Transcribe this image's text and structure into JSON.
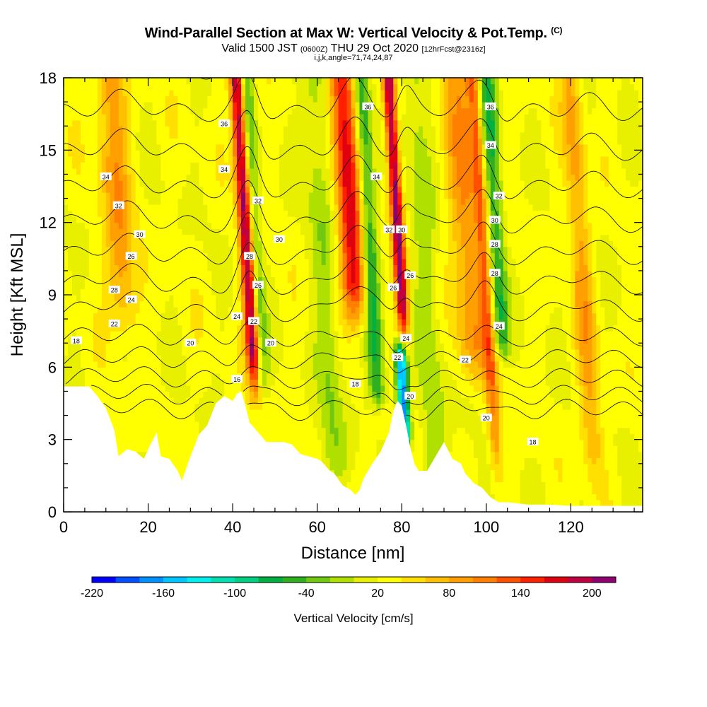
{
  "header": {
    "title": "Wind-Parallel Section at Max W: Vertical Velocity & Pot.Temp.",
    "title_tag": "(C)",
    "valid_prefix": "Valid 1500 JST",
    "valid_zulu": "(0600Z)",
    "valid_date": "THU 29 Oct 2020",
    "forecast_tag": "[12hrFcst@2316z]",
    "indices": "i,j,k,angle=71,74,24,87"
  },
  "chart_data": {
    "type": "heatmap",
    "xlabel": "Distance [nm]",
    "ylabel": "Height [Kft MSL]",
    "xlim": [
      0,
      137
    ],
    "ylim": [
      0,
      18
    ],
    "x_ticks": [
      "0",
      "20",
      "40",
      "60",
      "80",
      "100",
      "120"
    ],
    "y_ticks": [
      "0",
      "3",
      "6",
      "9",
      "12",
      "15",
      "18"
    ],
    "x_tick_values": [
      0,
      20,
      40,
      60,
      80,
      100,
      120
    ],
    "y_tick_values": [
      0,
      3,
      6,
      9,
      12,
      15,
      18
    ],
    "colorbar": {
      "title": "Vertical Velocity [cm/s]",
      "min": -220,
      "max": 220,
      "step": 20,
      "tick_labels": [
        "-220",
        "-160",
        "-100",
        "-40",
        "20",
        "80",
        "140",
        "200"
      ],
      "tick_values": [
        -220,
        -160,
        -100,
        -40,
        20,
        80,
        140,
        200
      ],
      "colors": [
        "#0000ff",
        "#0050ff",
        "#0090ff",
        "#00c8ff",
        "#00f0f0",
        "#00e0b0",
        "#00d080",
        "#00b040",
        "#30b020",
        "#70c810",
        "#b0e000",
        "#e8f000",
        "#ffff00",
        "#ffe000",
        "#ffc000",
        "#ffa000",
        "#ff8000",
        "#ff5000",
        "#ff2000",
        "#e00010",
        "#c00040",
        "#900070"
      ]
    },
    "terrain_kft": [
      [
        0,
        5.2
      ],
      [
        6,
        5.2
      ],
      [
        8,
        4.8
      ],
      [
        10,
        4.3
      ],
      [
        12,
        3.4
      ],
      [
        13,
        2.3
      ],
      [
        15,
        2.6
      ],
      [
        17,
        2.5
      ],
      [
        19,
        2.2
      ],
      [
        20,
        2.6
      ],
      [
        22,
        3.3
      ],
      [
        23,
        2.3
      ],
      [
        25,
        2.2
      ],
      [
        27,
        1.7
      ],
      [
        28,
        1.3
      ],
      [
        30,
        2.3
      ],
      [
        32,
        3.2
      ],
      [
        34,
        3.6
      ],
      [
        36,
        4.5
      ],
      [
        38,
        4.8
      ],
      [
        40,
        4.6
      ],
      [
        41,
        4.9
      ],
      [
        42,
        5.0
      ],
      [
        43,
        4.4
      ],
      [
        44,
        3.7
      ],
      [
        46,
        3.3
      ],
      [
        48,
        2.9
      ],
      [
        52,
        2.9
      ],
      [
        54,
        2.8
      ],
      [
        56,
        2.4
      ],
      [
        58,
        2.3
      ],
      [
        60,
        2.2
      ],
      [
        61,
        2.1
      ],
      [
        62,
        1.9
      ],
      [
        63,
        1.7
      ],
      [
        64,
        1.6
      ],
      [
        66,
        1.1
      ],
      [
        68,
        0.9
      ],
      [
        69,
        0.7
      ],
      [
        70,
        0.9
      ],
      [
        71,
        1.4
      ],
      [
        73,
        2.0
      ],
      [
        75,
        2.5
      ],
      [
        77,
        3.3
      ],
      [
        78,
        4.2
      ],
      [
        79,
        4.6
      ],
      [
        80,
        4.4
      ],
      [
        81,
        3.6
      ],
      [
        82,
        2.7
      ],
      [
        83,
        2.0
      ],
      [
        84,
        1.7
      ],
      [
        86,
        1.7
      ],
      [
        88,
        2.3
      ],
      [
        90,
        2.9
      ],
      [
        92,
        2.2
      ],
      [
        94,
        2.0
      ],
      [
        95,
        1.6
      ],
      [
        97,
        1.2
      ],
      [
        99,
        1.0
      ],
      [
        101,
        0.6
      ],
      [
        103,
        0.4
      ],
      [
        105,
        0.4
      ],
      [
        110,
        0.3
      ],
      [
        115,
        0.3
      ],
      [
        120,
        0.25
      ],
      [
        130,
        0.25
      ],
      [
        137,
        0.25
      ]
    ],
    "updrafts": [
      {
        "x": 44,
        "width": 1.6,
        "w": 180,
        "base": 5.5
      },
      {
        "x": 69,
        "width": 3.0,
        "w": 150,
        "base": 8.5
      },
      {
        "x": 80,
        "width": 1.4,
        "w": 190,
        "base": 7.5
      },
      {
        "x": 14,
        "width": 3.5,
        "w": 70,
        "base": 8.0
      },
      {
        "x": 96,
        "width": 4.0,
        "w": 70,
        "base": 6.0
      },
      {
        "x": 123,
        "width": 2.5,
        "w": 60,
        "base": 2.0
      },
      {
        "x": 100,
        "width": 1.5,
        "w": 80,
        "base": 2.0
      }
    ],
    "downdrafts": [
      {
        "x": 79,
        "width": 1.4,
        "w": -200,
        "bottom": 3.2,
        "top": 6.5
      },
      {
        "x": 73,
        "width": 2.0,
        "w": -90,
        "bottom": 5.0,
        "top": 18
      },
      {
        "x": 46,
        "width": 1.5,
        "w": -60,
        "bottom": 5.5,
        "top": 18
      },
      {
        "x": 103,
        "width": 2.0,
        "w": -80,
        "bottom": 7.0,
        "top": 18
      },
      {
        "x": 62,
        "width": 3.0,
        "w": -40,
        "bottom": 2.0,
        "top": 18
      },
      {
        "x": 86,
        "width": 3.0,
        "w": -40,
        "bottom": 1.5,
        "top": 18
      }
    ],
    "theta_contours": {
      "min": 16,
      "max": 36,
      "step": 1
    },
    "contour_labels": [
      {
        "text": "36",
        "x": 38,
        "y": 16.1
      },
      {
        "text": "34",
        "x": 10,
        "y": 13.9
      },
      {
        "text": "34",
        "x": 38,
        "y": 14.2
      },
      {
        "text": "32",
        "x": 13,
        "y": 12.7
      },
      {
        "text": "32",
        "x": 46,
        "y": 12.9
      },
      {
        "text": "30",
        "x": 18,
        "y": 11.5
      },
      {
        "text": "30",
        "x": 51,
        "y": 11.3
      },
      {
        "text": "26",
        "x": 16,
        "y": 10.6
      },
      {
        "text": "28",
        "x": 44,
        "y": 10.6
      },
      {
        "text": "26",
        "x": 46,
        "y": 9.4
      },
      {
        "text": "28",
        "x": 12,
        "y": 9.2
      },
      {
        "text": "24",
        "x": 16,
        "y": 8.8
      },
      {
        "text": "24",
        "x": 41,
        "y": 8.1
      },
      {
        "text": "22",
        "x": 45,
        "y": 7.9
      },
      {
        "text": "22",
        "x": 12,
        "y": 7.8
      },
      {
        "text": "20",
        "x": 30,
        "y": 7.0
      },
      {
        "text": "20",
        "x": 49,
        "y": 7.0
      },
      {
        "text": "18",
        "x": 3,
        "y": 7.1
      },
      {
        "text": "16",
        "x": 41,
        "y": 5.5
      },
      {
        "text": "36",
        "x": 72,
        "y": 16.8
      },
      {
        "text": "34",
        "x": 74,
        "y": 13.9
      },
      {
        "text": "32",
        "x": 77,
        "y": 11.7
      },
      {
        "text": "30",
        "x": 80,
        "y": 11.7
      },
      {
        "text": "26",
        "x": 82,
        "y": 9.8
      },
      {
        "text": "26",
        "x": 78,
        "y": 9.3
      },
      {
        "text": "24",
        "x": 81,
        "y": 7.2
      },
      {
        "text": "22",
        "x": 79,
        "y": 6.4
      },
      {
        "text": "20",
        "x": 82,
        "y": 4.8
      },
      {
        "text": "18",
        "x": 69,
        "y": 5.3
      },
      {
        "text": "36",
        "x": 101,
        "y": 16.8
      },
      {
        "text": "34",
        "x": 101,
        "y": 15.2
      },
      {
        "text": "32",
        "x": 103,
        "y": 13.1
      },
      {
        "text": "30",
        "x": 102,
        "y": 12.1
      },
      {
        "text": "28",
        "x": 102,
        "y": 11.1
      },
      {
        "text": "28",
        "x": 102,
        "y": 9.9
      },
      {
        "text": "24",
        "x": 103,
        "y": 7.7
      },
      {
        "text": "22",
        "x": 95,
        "y": 6.3
      },
      {
        "text": "20",
        "x": 100,
        "y": 3.9
      },
      {
        "text": "18",
        "x": 111,
        "y": 2.9
      }
    ]
  }
}
